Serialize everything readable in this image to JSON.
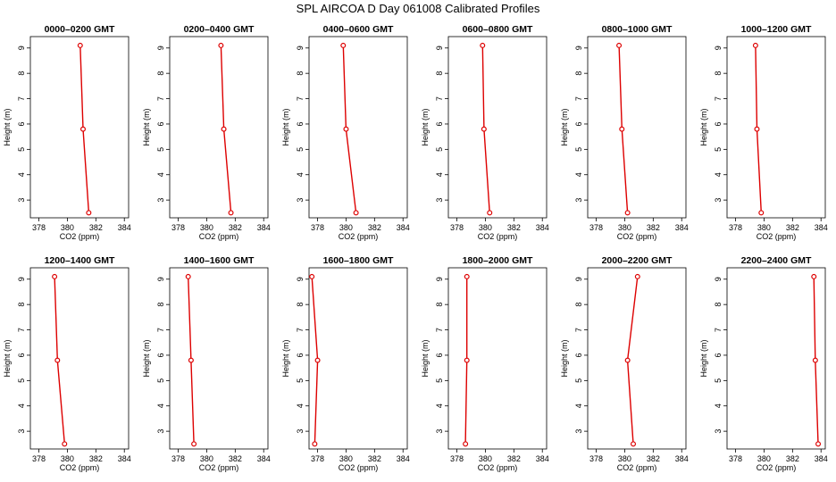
{
  "figure": {
    "title": "SPL AIRCOA D  Day 061008  Calibrated Profiles"
  },
  "chart_data": [
    {
      "type": "line",
      "title": "0000–0200 GMT",
      "xlabel": "CO2 (ppm)",
      "ylabel": "Height (m)",
      "xlim": [
        377.4,
        384.3
      ],
      "ylim": [
        2.3,
        9.45
      ],
      "xticks": [
        378,
        380,
        382,
        384
      ],
      "yticks": [
        3,
        4,
        5,
        6,
        7,
        8,
        9
      ],
      "x": [
        380.9,
        381.1,
        381.5
      ],
      "y": [
        9.1,
        5.8,
        2.5
      ],
      "color": "#dd0000"
    },
    {
      "type": "line",
      "title": "0200–0400 GMT",
      "xlabel": "CO2 (ppm)",
      "ylabel": "Height (m)",
      "xlim": [
        377.4,
        384.3
      ],
      "ylim": [
        2.3,
        9.45
      ],
      "xticks": [
        378,
        380,
        382,
        384
      ],
      "yticks": [
        3,
        4,
        5,
        6,
        7,
        8,
        9
      ],
      "x": [
        381.0,
        381.2,
        381.7
      ],
      "y": [
        9.1,
        5.8,
        2.5
      ],
      "color": "#dd0000"
    },
    {
      "type": "line",
      "title": "0400–0600 GMT",
      "xlabel": "CO2 (ppm)",
      "ylabel": "Height (m)",
      "xlim": [
        377.4,
        384.3
      ],
      "ylim": [
        2.3,
        9.45
      ],
      "xticks": [
        378,
        380,
        382,
        384
      ],
      "yticks": [
        3,
        4,
        5,
        6,
        7,
        8,
        9
      ],
      "x": [
        379.8,
        380.0,
        380.7
      ],
      "y": [
        9.1,
        5.8,
        2.5
      ],
      "color": "#dd0000"
    },
    {
      "type": "line",
      "title": "0600–0800 GMT",
      "xlabel": "CO2 (ppm)",
      "ylabel": "Height (m)",
      "xlim": [
        377.4,
        384.3
      ],
      "ylim": [
        2.3,
        9.45
      ],
      "xticks": [
        378,
        380,
        382,
        384
      ],
      "yticks": [
        3,
        4,
        5,
        6,
        7,
        8,
        9
      ],
      "x": [
        379.8,
        379.9,
        380.3
      ],
      "y": [
        9.1,
        5.8,
        2.5
      ],
      "color": "#dd0000"
    },
    {
      "type": "line",
      "title": "0800–1000 GMT",
      "xlabel": "CO2 (ppm)",
      "ylabel": "Height (m)",
      "xlim": [
        377.4,
        384.3
      ],
      "ylim": [
        2.3,
        9.45
      ],
      "xticks": [
        378,
        380,
        382,
        384
      ],
      "yticks": [
        3,
        4,
        5,
        6,
        7,
        8,
        9
      ],
      "x": [
        379.6,
        379.8,
        380.2
      ],
      "y": [
        9.1,
        5.8,
        2.5
      ],
      "color": "#dd0000"
    },
    {
      "type": "line",
      "title": "1000–1200 GMT",
      "xlabel": "CO2 (ppm)",
      "ylabel": "Height (m)",
      "xlim": [
        377.4,
        384.3
      ],
      "ylim": [
        2.3,
        9.45
      ],
      "xticks": [
        378,
        380,
        382,
        384
      ],
      "yticks": [
        3,
        4,
        5,
        6,
        7,
        8,
        9
      ],
      "x": [
        379.4,
        379.5,
        379.8
      ],
      "y": [
        9.1,
        5.8,
        2.5
      ],
      "color": "#dd0000"
    },
    {
      "type": "line",
      "title": "1200–1400 GMT",
      "xlabel": "CO2 (ppm)",
      "ylabel": "Height (m)",
      "xlim": [
        377.4,
        384.3
      ],
      "ylim": [
        2.3,
        9.45
      ],
      "xticks": [
        378,
        380,
        382,
        384
      ],
      "yticks": [
        3,
        4,
        5,
        6,
        7,
        8,
        9
      ],
      "x": [
        379.1,
        379.3,
        379.8
      ],
      "y": [
        9.1,
        5.8,
        2.5
      ],
      "color": "#dd0000"
    },
    {
      "type": "line",
      "title": "1400–1600 GMT",
      "xlabel": "CO2 (ppm)",
      "ylabel": "Height (m)",
      "xlim": [
        377.4,
        384.3
      ],
      "ylim": [
        2.3,
        9.45
      ],
      "xticks": [
        378,
        380,
        382,
        384
      ],
      "yticks": [
        3,
        4,
        5,
        6,
        7,
        8,
        9
      ],
      "x": [
        378.7,
        378.9,
        379.1
      ],
      "y": [
        9.1,
        5.8,
        2.5
      ],
      "color": "#dd0000"
    },
    {
      "type": "line",
      "title": "1600–1800 GMT",
      "xlabel": "CO2 (ppm)",
      "ylabel": "Height (m)",
      "xlim": [
        377.4,
        384.3
      ],
      "ylim": [
        2.3,
        9.45
      ],
      "xticks": [
        378,
        380,
        382,
        384
      ],
      "yticks": [
        3,
        4,
        5,
        6,
        7,
        8,
        9
      ],
      "x": [
        377.6,
        378.0,
        377.8
      ],
      "y": [
        9.1,
        5.8,
        2.5
      ],
      "color": "#dd0000"
    },
    {
      "type": "line",
      "title": "1800–2000 GMT",
      "xlabel": "CO2 (ppm)",
      "ylabel": "Height (m)",
      "xlim": [
        377.4,
        384.3
      ],
      "ylim": [
        2.3,
        9.45
      ],
      "xticks": [
        378,
        380,
        382,
        384
      ],
      "yticks": [
        3,
        4,
        5,
        6,
        7,
        8,
        9
      ],
      "x": [
        378.7,
        378.7,
        378.6
      ],
      "y": [
        9.1,
        5.8,
        2.5
      ],
      "color": "#dd0000"
    },
    {
      "type": "line",
      "title": "2000–2200 GMT",
      "xlabel": "CO2 (ppm)",
      "ylabel": "Height (m)",
      "xlim": [
        377.4,
        384.3
      ],
      "ylim": [
        2.3,
        9.45
      ],
      "xticks": [
        378,
        380,
        382,
        384
      ],
      "yticks": [
        3,
        4,
        5,
        6,
        7,
        8,
        9
      ],
      "x": [
        380.9,
        380.2,
        380.6
      ],
      "y": [
        9.1,
        5.8,
        2.5
      ],
      "color": "#dd0000"
    },
    {
      "type": "line",
      "title": "2200–2400 GMT",
      "xlabel": "CO2 (ppm)",
      "ylabel": "Height (m)",
      "xlim": [
        377.4,
        384.3
      ],
      "ylim": [
        2.3,
        9.45
      ],
      "xticks": [
        378,
        380,
        382,
        384
      ],
      "yticks": [
        3,
        4,
        5,
        6,
        7,
        8,
        9
      ],
      "x": [
        383.5,
        383.6,
        383.8
      ],
      "y": [
        9.1,
        5.8,
        2.5
      ],
      "color": "#dd0000"
    }
  ]
}
